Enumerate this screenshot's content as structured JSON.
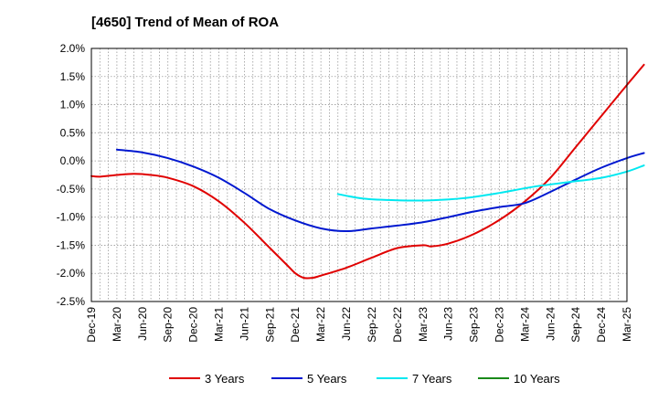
{
  "chart_data": {
    "type": "line",
    "title": "[4650]  Trend of Mean of ROA",
    "xlabel": "",
    "ylabel": "",
    "ylim": [
      -2.5,
      2.0
    ],
    "y_ticks": [
      2.0,
      1.5,
      1.0,
      0.5,
      0.0,
      -0.5,
      -1.0,
      -1.5,
      -2.0,
      -2.5
    ],
    "y_tick_labels": [
      "2.0%",
      "1.5%",
      "1.0%",
      "0.5%",
      "0.0%",
      "-0.5%",
      "-1.0%",
      "-1.5%",
      "-2.0%",
      "-2.5%"
    ],
    "x_tick_labels": [
      "Dec-19",
      "Mar-20",
      "Jun-20",
      "Sep-20",
      "Dec-20",
      "Mar-21",
      "Jun-21",
      "Sep-21",
      "Dec-21",
      "Mar-22",
      "Jun-22",
      "Sep-22",
      "Dec-22",
      "Mar-23",
      "Jun-23",
      "Sep-23",
      "Dec-23",
      "Mar-24",
      "Jun-24",
      "Sep-24",
      "Dec-24",
      "Mar-25"
    ],
    "x_months_total": 63,
    "grid": true,
    "legend_position": "bottom",
    "series": [
      {
        "name": "3 Years",
        "color": "#e00000",
        "points": [
          [
            0,
            -0.27
          ],
          [
            1,
            -0.28
          ],
          [
            3,
            -0.25
          ],
          [
            5,
            -0.23
          ],
          [
            7,
            -0.25
          ],
          [
            9,
            -0.3
          ],
          [
            12,
            -0.45
          ],
          [
            15,
            -0.72
          ],
          [
            18,
            -1.1
          ],
          [
            21,
            -1.55
          ],
          [
            23,
            -1.85
          ],
          [
            24,
            -2.0
          ],
          [
            25,
            -2.08
          ],
          [
            26,
            -2.08
          ],
          [
            27,
            -2.04
          ],
          [
            30,
            -1.9
          ],
          [
            33,
            -1.72
          ],
          [
            36,
            -1.55
          ],
          [
            39,
            -1.5
          ],
          [
            40,
            -1.52
          ],
          [
            42,
            -1.47
          ],
          [
            45,
            -1.3
          ],
          [
            48,
            -1.05
          ],
          [
            51,
            -0.72
          ],
          [
            54,
            -0.3
          ],
          [
            57,
            0.25
          ],
          [
            60,
            0.8
          ],
          [
            63,
            1.35
          ],
          [
            65,
            1.71
          ]
        ]
      },
      {
        "name": "5 Years",
        "color": "#0018d0",
        "points": [
          [
            3,
            0.2
          ],
          [
            6,
            0.15
          ],
          [
            9,
            0.05
          ],
          [
            12,
            -0.1
          ],
          [
            15,
            -0.3
          ],
          [
            18,
            -0.57
          ],
          [
            21,
            -0.86
          ],
          [
            24,
            -1.06
          ],
          [
            27,
            -1.2
          ],
          [
            30,
            -1.25
          ],
          [
            33,
            -1.2
          ],
          [
            36,
            -1.15
          ],
          [
            39,
            -1.09
          ],
          [
            42,
            -1.0
          ],
          [
            45,
            -0.9
          ],
          [
            48,
            -0.82
          ],
          [
            51,
            -0.75
          ],
          [
            54,
            -0.55
          ],
          [
            57,
            -0.33
          ],
          [
            60,
            -0.12
          ],
          [
            63,
            0.05
          ],
          [
            65,
            0.14
          ]
        ]
      },
      {
        "name": "7 Years",
        "color": "#00e8f0",
        "points": [
          [
            29,
            -0.59
          ],
          [
            32,
            -0.67
          ],
          [
            36,
            -0.7
          ],
          [
            40,
            -0.7
          ],
          [
            44,
            -0.66
          ],
          [
            48,
            -0.57
          ],
          [
            52,
            -0.46
          ],
          [
            56,
            -0.38
          ],
          [
            60,
            -0.3
          ],
          [
            63,
            -0.19
          ],
          [
            65,
            -0.08
          ]
        ]
      },
      {
        "name": "10 Years",
        "color": "#1a8a1a",
        "points": []
      }
    ]
  }
}
